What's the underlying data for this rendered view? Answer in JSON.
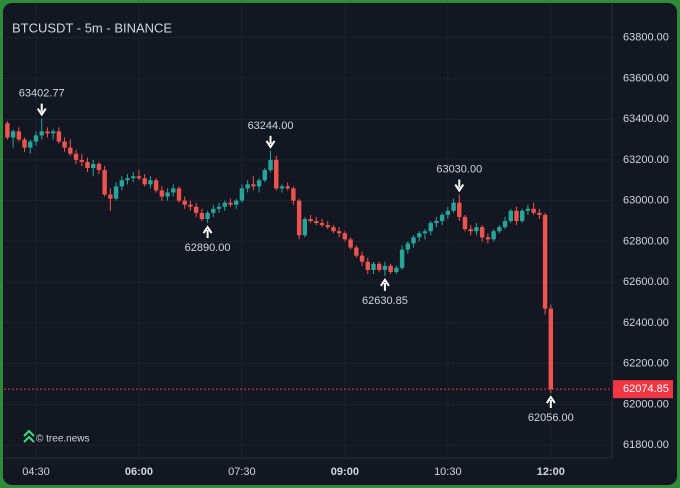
{
  "chart_data": {
    "type": "candlestick",
    "title": "BTCUSDT - 5m - BINANCE",
    "watermark": "© tree.news",
    "up_color": "#26a69a",
    "down_color": "#ef5350",
    "grid": true,
    "x": [
      "04:05",
      "04:10",
      "04:15",
      "04:20",
      "04:25",
      "04:30",
      "04:35",
      "04:40",
      "04:45",
      "04:50",
      "04:55",
      "05:00",
      "05:05",
      "05:10",
      "05:15",
      "05:20",
      "05:25",
      "05:30",
      "05:35",
      "05:40",
      "05:45",
      "05:50",
      "05:55",
      "06:00",
      "06:05",
      "06:10",
      "06:15",
      "06:20",
      "06:25",
      "06:30",
      "06:35",
      "06:40",
      "06:45",
      "06:50",
      "06:55",
      "07:00",
      "07:05",
      "07:10",
      "07:15",
      "07:20",
      "07:25",
      "07:30",
      "07:35",
      "07:40",
      "07:45",
      "07:50",
      "07:55",
      "08:00",
      "08:05",
      "08:10",
      "08:15",
      "08:20",
      "08:25",
      "08:30",
      "08:35",
      "08:40",
      "08:45",
      "08:50",
      "08:55",
      "09:00",
      "09:05",
      "09:10",
      "09:15",
      "09:20",
      "09:25",
      "09:30",
      "09:35",
      "09:40",
      "09:45",
      "09:50",
      "09:55",
      "10:00",
      "10:05",
      "10:10",
      "10:15",
      "10:20",
      "10:25",
      "10:30",
      "10:35",
      "10:40",
      "10:45",
      "10:50",
      "10:55",
      "11:00",
      "11:05",
      "11:10",
      "11:15",
      "11:20",
      "11:25",
      "11:30",
      "11:35",
      "11:40",
      "11:45",
      "11:50",
      "11:55",
      "12:00"
    ],
    "ohlc": [
      [
        63380,
        63390,
        63300,
        63310
      ],
      [
        63310,
        63350,
        63260,
        63340
      ],
      [
        63340,
        63360,
        63290,
        63300
      ],
      [
        63300,
        63310,
        63240,
        63260
      ],
      [
        63260,
        63300,
        63230,
        63290
      ],
      [
        63290,
        63340,
        63270,
        63320
      ],
      [
        63320,
        63402.77,
        63300,
        63340
      ],
      [
        63340,
        63360,
        63310,
        63330
      ],
      [
        63330,
        63350,
        63300,
        63340
      ],
      [
        63340,
        63360,
        63280,
        63290
      ],
      [
        63290,
        63310,
        63240,
        63260
      ],
      [
        63260,
        63300,
        63220,
        63230
      ],
      [
        63230,
        63250,
        63180,
        63200
      ],
      [
        63200,
        63230,
        63170,
        63190
      ],
      [
        63190,
        63210,
        63140,
        63160
      ],
      [
        63160,
        63200,
        63120,
        63180
      ],
      [
        63180,
        63190,
        63130,
        63150
      ],
      [
        63150,
        63170,
        63020,
        63030
      ],
      [
        63030,
        63060,
        62950,
        63010
      ],
      [
        63010,
        63090,
        63000,
        63070
      ],
      [
        63070,
        63120,
        63050,
        63100
      ],
      [
        63100,
        63130,
        63080,
        63110
      ],
      [
        63110,
        63140,
        63090,
        63120
      ],
      [
        63120,
        63150,
        63100,
        63110
      ],
      [
        63110,
        63130,
        63070,
        63080
      ],
      [
        63080,
        63120,
        63060,
        63100
      ],
      [
        63100,
        63110,
        63040,
        63050
      ],
      [
        63050,
        63070,
        63000,
        63020
      ],
      [
        63020,
        63060,
        63000,
        63040
      ],
      [
        63040,
        63080,
        63020,
        63060
      ],
      [
        63060,
        63070,
        62990,
        63000
      ],
      [
        63000,
        63020,
        62960,
        62980
      ],
      [
        62980,
        63000,
        62950,
        62970
      ],
      [
        62970,
        62990,
        62920,
        62940
      ],
      [
        62940,
        62960,
        62900,
        62910
      ],
      [
        62910,
        62950,
        62890,
        62940
      ],
      [
        62940,
        62980,
        62920,
        62960
      ],
      [
        62960,
        62990,
        62940,
        62970
      ],
      [
        62970,
        63000,
        62950,
        62990
      ],
      [
        62990,
        63010,
        62970,
        62980
      ],
      [
        62980,
        63010,
        62960,
        63000
      ],
      [
        63000,
        63080,
        62990,
        63060
      ],
      [
        63060,
        63100,
        63040,
        63080
      ],
      [
        63080,
        63120,
        63050,
        63070
      ],
      [
        63070,
        63110,
        63040,
        63100
      ],
      [
        63100,
        63160,
        63090,
        63150
      ],
      [
        63150,
        63244,
        63140,
        63200
      ],
      [
        63200,
        63220,
        63050,
        63060
      ],
      [
        63060,
        63080,
        63040,
        63070
      ],
      [
        63070,
        63090,
        63050,
        63060
      ],
      [
        63060,
        63070,
        62980,
        63000
      ],
      [
        63000,
        63010,
        62810,
        62830
      ],
      [
        62830,
        62920,
        62820,
        62910
      ],
      [
        62910,
        62930,
        62890,
        62900
      ],
      [
        62900,
        62920,
        62880,
        62890
      ],
      [
        62890,
        62910,
        62870,
        62880
      ],
      [
        62880,
        62900,
        62860,
        62870
      ],
      [
        62870,
        62880,
        62840,
        62850
      ],
      [
        62850,
        62870,
        62820,
        62840
      ],
      [
        62840,
        62850,
        62800,
        62810
      ],
      [
        62810,
        62820,
        62760,
        62770
      ],
      [
        62770,
        62780,
        62720,
        62730
      ],
      [
        62730,
        62750,
        62680,
        62700
      ],
      [
        62700,
        62720,
        62640,
        62660
      ],
      [
        62660,
        62700,
        62640,
        62690
      ],
      [
        62690,
        62700,
        62650,
        62660
      ],
      [
        62660,
        62700,
        62630.85,
        62680
      ],
      [
        62680,
        62690,
        62640,
        62650
      ],
      [
        62650,
        62680,
        62640,
        62670
      ],
      [
        62670,
        62780,
        62660,
        62760
      ],
      [
        62760,
        62800,
        62740,
        62790
      ],
      [
        62790,
        62830,
        62770,
        62820
      ],
      [
        62820,
        62850,
        62800,
        62840
      ],
      [
        62840,
        62860,
        62810,
        62850
      ],
      [
        62850,
        62900,
        62830,
        62890
      ],
      [
        62890,
        62920,
        62870,
        62900
      ],
      [
        62900,
        62940,
        62880,
        62930
      ],
      [
        62930,
        62970,
        62910,
        62950
      ],
      [
        62950,
        63010,
        62940,
        62990
      ],
      [
        62990,
        63030,
        62900,
        62920
      ],
      [
        62920,
        62930,
        62850,
        62860
      ],
      [
        62860,
        62880,
        62830,
        62850
      ],
      [
        62850,
        62890,
        62830,
        62870
      ],
      [
        62870,
        62880,
        62800,
        62820
      ],
      [
        62820,
        62840,
        62790,
        62810
      ],
      [
        62810,
        62860,
        62800,
        62850
      ],
      [
        62850,
        62880,
        62840,
        62870
      ],
      [
        62870,
        62920,
        62860,
        62900
      ],
      [
        62900,
        62960,
        62890,
        62950
      ],
      [
        62950,
        62970,
        62880,
        62900
      ],
      [
        62900,
        62960,
        62890,
        62950
      ],
      [
        62950,
        62980,
        62930,
        62960
      ],
      [
        62960,
        62990,
        62930,
        62940
      ],
      [
        62940,
        62960,
        62910,
        62930
      ],
      [
        62930,
        62940,
        62440,
        62470
      ],
      [
        62470,
        62490,
        62056,
        62074.85
      ]
    ],
    "annotations": [
      {
        "value": 63402.77,
        "label": "63402.77",
        "position": "above"
      },
      {
        "value": 62890,
        "label": "62890.00",
        "position": "below"
      },
      {
        "value": 63244,
        "label": "63244.00",
        "position": "above"
      },
      {
        "value": 62630.85,
        "label": "62630.85",
        "position": "below"
      },
      {
        "value": 63030,
        "label": "63030.00",
        "position": "above"
      },
      {
        "value": 62056,
        "label": "62056.00",
        "position": "below"
      }
    ],
    "price_line": {
      "value": 62074.85,
      "label": "62074.85",
      "color": "#f23645"
    },
    "ylim": [
      61737,
      63965
    ],
    "yticks": [
      {
        "value": 61800,
        "label": "61800.00"
      },
      {
        "value": 62000,
        "label": "62000.00"
      },
      {
        "value": 62200,
        "label": "62200.00"
      },
      {
        "value": 62400,
        "label": "62400.00"
      },
      {
        "value": 62600,
        "label": "62600.00"
      },
      {
        "value": 62800,
        "label": "62800.00"
      },
      {
        "value": 63000,
        "label": "63000.00"
      },
      {
        "value": 63200,
        "label": "63200.00"
      },
      {
        "value": 63400,
        "label": "63400.00"
      },
      {
        "value": 63600,
        "label": "63600.00"
      },
      {
        "value": 63800,
        "label": "63800.00"
      }
    ],
    "xticks": [
      "04:30",
      "06:00",
      "07:30",
      "09:00",
      "10:30",
      "12:00"
    ]
  }
}
